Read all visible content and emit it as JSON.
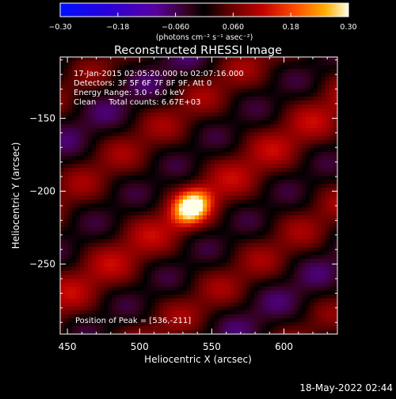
{
  "chart_data": {
    "type": "heatmap",
    "title": "Reconstructed RHESSI Image",
    "xlabel": "Heliocentric X (arcsec)",
    "ylabel": "Heliocentric Y (arcsec)",
    "xlim": [
      445,
      637
    ],
    "ylim": [
      -298,
      -108
    ],
    "x_ticks": [
      450,
      500,
      550,
      600
    ],
    "y_ticks": [
      -150,
      -200,
      -250
    ],
    "x_tick_labels": [
      "450",
      "500",
      "550",
      "600"
    ],
    "y_tick_labels": [
      "−150",
      "−200",
      "−250"
    ],
    "colorbar": {
      "range": [
        -0.3,
        0.3
      ],
      "ticks": [
        -0.3,
        -0.18,
        -0.06,
        0.06,
        0.18,
        0.3
      ],
      "tick_labels": [
        "−0.30",
        "−0.18",
        "−0.060",
        "0.060",
        "0.18",
        "0.30"
      ],
      "unit_label": "(photons cm⁻² s⁻¹ asec⁻²)"
    },
    "peak": {
      "x": 536,
      "y": -211,
      "value": 0.3
    },
    "annotations": [
      "17‑Jan‑2015 02:05:20.000 to 02:07:16.000",
      "Detectors: 3F 5F 6F 7F 8F 9F, Att 0",
      "Energy Range: 3.0 ‑ 6.0 keV",
      "Clean     Total counts: 6.67E+03"
    ],
    "peak_label": "Position of Peak = [536,‑211]"
  },
  "footer": {
    "timestamp": "18‑May‑2022 02:44"
  }
}
